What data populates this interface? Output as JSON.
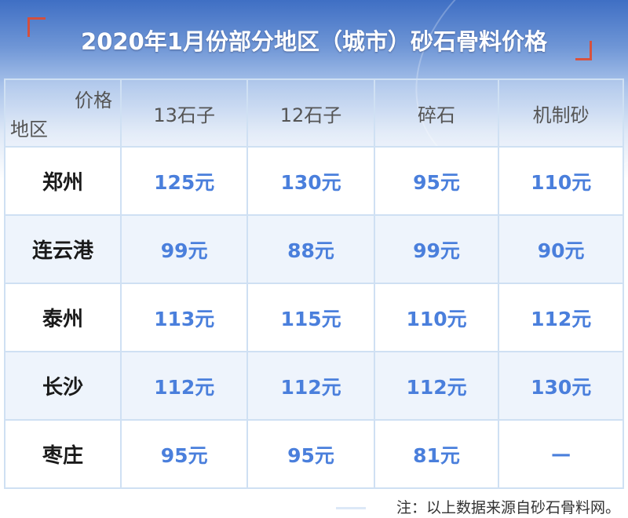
{
  "title": "2020年1月份部分地区（城市）砂石骨料价格",
  "colors": {
    "accent": "#e24a2e",
    "price": "#4a7fdc",
    "header_bg": "#3f6fc4"
  },
  "chart_data": {
    "type": "table",
    "title": "2020年1月份部分地区（城市）砂石骨料价格",
    "corner_top": "价格",
    "corner_bottom": "地区",
    "columns": [
      "13石子",
      "12石子",
      "碎石",
      "机制砂"
    ],
    "rows": [
      {
        "city": "郑州",
        "values": [
          "125元",
          "130元",
          "95元",
          "110元"
        ]
      },
      {
        "city": "连云港",
        "values": [
          "99元",
          "88元",
          "99元",
          "90元"
        ]
      },
      {
        "city": "泰州",
        "values": [
          "113元",
          "115元",
          "110元",
          "112元"
        ]
      },
      {
        "city": "长沙",
        "values": [
          "112元",
          "112元",
          "112元",
          "130元"
        ]
      },
      {
        "city": "枣庄",
        "values": [
          "95元",
          "95元",
          "81元",
          "—"
        ]
      }
    ]
  },
  "note": "注：以上数据来源自砂石骨料网。"
}
